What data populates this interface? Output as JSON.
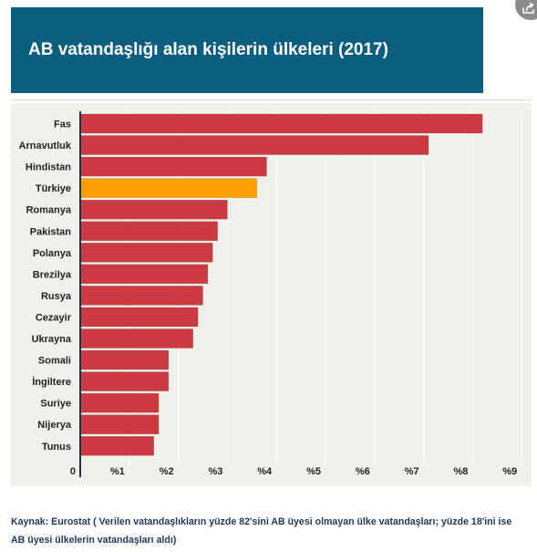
{
  "share_button": {
    "icon": "share-icon",
    "color": "#8c8c8c"
  },
  "colors": {
    "banner": "#0b5e80",
    "plot_background": "#f1f1ec",
    "gridline": "#ffffff",
    "axis": "#1d3344"
  },
  "chart_data": {
    "type": "bar",
    "orientation": "horizontal",
    "title": "AB vatandaşlığı alan kişilerin ülkeleri (2017)",
    "categories": [
      "Fas",
      "Arnavutluk",
      "Hindistan",
      "Türkiye",
      "Romanya",
      "Pakistan",
      "Polanya",
      "Brezilya",
      "Rusya",
      "Cezayir",
      "Ukrayna",
      "Somali",
      "İngiltere",
      "Suriye",
      "Nijerya",
      "Tunus"
    ],
    "values": [
      8.2,
      7.1,
      3.8,
      3.6,
      3.0,
      2.8,
      2.7,
      2.6,
      2.5,
      2.4,
      2.3,
      1.8,
      1.8,
      1.6,
      1.6,
      1.5
    ],
    "bar_colors": [
      "#cc3a42",
      "#cc3a42",
      "#cc3a42",
      "#ff9f00",
      "#cc3a42",
      "#cc3a42",
      "#cc3a42",
      "#cc3a42",
      "#cc3a42",
      "#cc3a42",
      "#cc3a42",
      "#cc3a42",
      "#cc3a42",
      "#cc3a42",
      "#cc3a42",
      "#cc3a42"
    ],
    "xlim": [
      0,
      9
    ],
    "x_ticks": [
      0,
      1,
      2,
      3,
      4,
      5,
      6,
      7,
      8,
      9
    ],
    "x_tick_labels": [
      "0",
      "%1",
      "%2",
      "%3",
      "%4",
      "%5",
      "%6",
      "%7",
      "%8",
      "%9"
    ],
    "grid": true,
    "legend": "none"
  },
  "source_note": "Kaynak: Eurostat ( Verilen vatandaşlıkların yüzde 82'sini AB üyesi olmayan ülke vatandaşları; yüzde 18'ini ise AB üyesi ülkelerin vatandaşları aldı)"
}
